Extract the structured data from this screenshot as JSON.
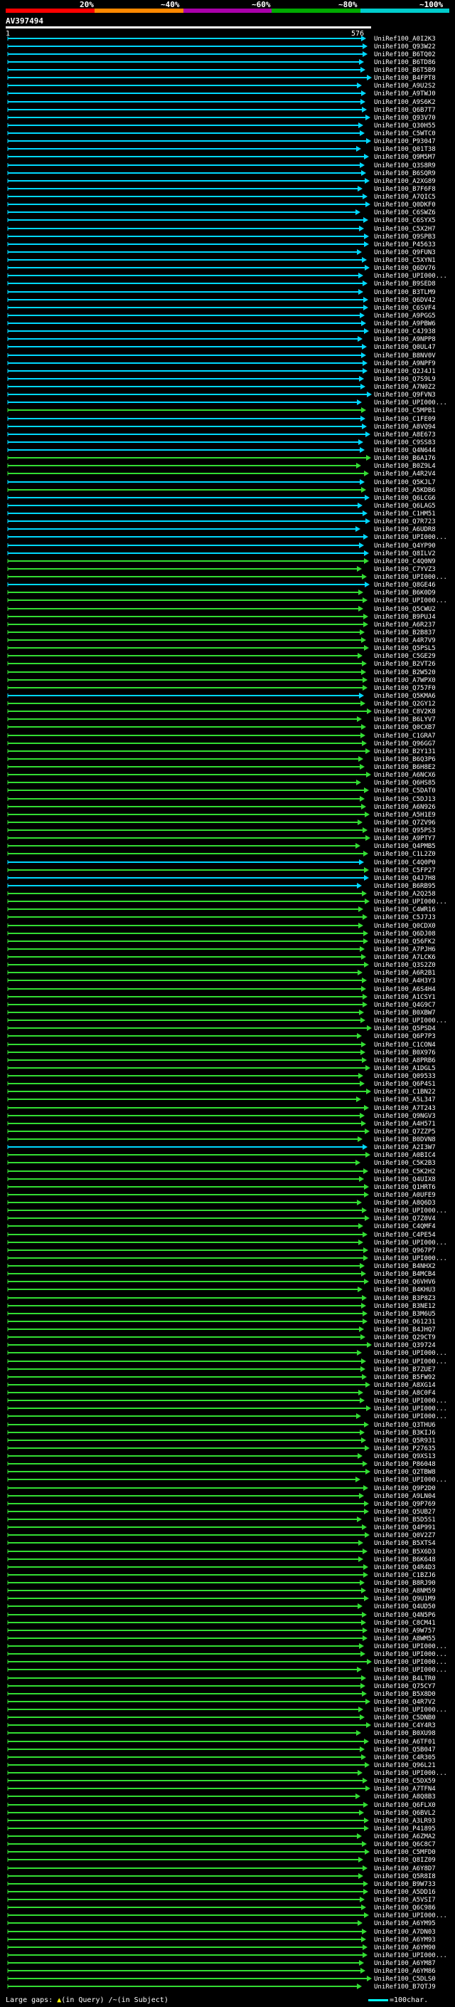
{
  "legend": {
    "labels": [
      "20%",
      "~40%",
      "~60%",
      "~80%",
      "~100%"
    ],
    "colors": [
      "#ff0000",
      "#ff8800",
      "#aa00aa",
      "#00aa00",
      "#00cccc"
    ]
  },
  "query": {
    "title": "AV397494",
    "start": "1",
    "end": "576"
  },
  "hit_colors": {
    "cyan": "#00d8ff",
    "green": "#33dd33",
    "blue": "#4aa0ff",
    "yellow": "#ffff00"
  },
  "hits": [
    {
      "id": "UniRef100_A0I2K3",
      "color": "cyan"
    },
    {
      "id": "UniRef100_Q93W22",
      "color": "cyan"
    },
    {
      "id": "UniRef100_B6TQ02",
      "color": "cyan"
    },
    {
      "id": "UniRef100_B6TD86",
      "color": "cyan"
    },
    {
      "id": "UniRef100_B6T5B9",
      "color": "cyan"
    },
    {
      "id": "UniRef100_B4FPT8",
      "color": "cyan"
    },
    {
      "id": "UniRef100_A9U2S2",
      "color": "cyan"
    },
    {
      "id": "UniRef100_A9TWJ0",
      "color": "cyan"
    },
    {
      "id": "UniRef100_A9S6K2",
      "color": "cyan"
    },
    {
      "id": "UniRef100_Q6B7T7",
      "color": "cyan"
    },
    {
      "id": "UniRef100_Q93V70",
      "color": "cyan"
    },
    {
      "id": "UniRef100_Q30H55",
      "color": "cyan"
    },
    {
      "id": "UniRef100_C5WTC0",
      "color": "cyan"
    },
    {
      "id": "UniRef100_P93047",
      "color": "cyan"
    },
    {
      "id": "UniRef100_Q01T38",
      "color": "cyan"
    },
    {
      "id": "UniRef100_Q9M5M7",
      "color": "cyan"
    },
    {
      "id": "UniRef100_Q3S8R9",
      "color": "cyan"
    },
    {
      "id": "UniRef100_B6SQR9",
      "color": "cyan"
    },
    {
      "id": "UniRef100_A2XG89",
      "color": "cyan"
    },
    {
      "id": "UniRef100_B7F6F8",
      "color": "cyan"
    },
    {
      "id": "UniRef100_A7QIC5",
      "color": "cyan"
    },
    {
      "id": "UniRef100_Q0DKF0",
      "color": "cyan"
    },
    {
      "id": "UniRef100_C6SWZ6",
      "color": "cyan"
    },
    {
      "id": "UniRef100_C6SYX5",
      "color": "cyan"
    },
    {
      "id": "UniRef100_C5X2H7",
      "color": "cyan"
    },
    {
      "id": "UniRef100_Q9SPB3",
      "color": "cyan"
    },
    {
      "id": "UniRef100_P45633",
      "color": "cyan"
    },
    {
      "id": "UniRef100_Q9FUN3",
      "color": "cyan"
    },
    {
      "id": "UniRef100_C5XYN1",
      "color": "cyan"
    },
    {
      "id": "UniRef100_Q6DV76",
      "color": "cyan"
    },
    {
      "id": "UniRef100_UPI000...",
      "color": "cyan"
    },
    {
      "id": "UniRef100_B9SED8",
      "color": "cyan"
    },
    {
      "id": "UniRef100_B3TLM9",
      "color": "cyan"
    },
    {
      "id": "UniRef100_Q6DV42",
      "color": "cyan"
    },
    {
      "id": "UniRef100_C6SVF4",
      "color": "cyan"
    },
    {
      "id": "UniRef100_A9PGG5",
      "color": "cyan"
    },
    {
      "id": "UniRef100_A9PBW6",
      "color": "cyan"
    },
    {
      "id": "UniRef100_C4J938",
      "color": "cyan"
    },
    {
      "id": "UniRef100_A9NPP8",
      "color": "cyan"
    },
    {
      "id": "UniRef100_Q0UL47",
      "color": "cyan"
    },
    {
      "id": "UniRef100_B8NV0V",
      "color": "cyan"
    },
    {
      "id": "UniRef100_A9NPF9",
      "color": "cyan"
    },
    {
      "id": "UniRef100_Q2J4J1",
      "color": "cyan"
    },
    {
      "id": "UniRef100_Q7S9L9",
      "color": "cyan"
    },
    {
      "id": "UniRef100_A7N0Z2",
      "color": "cyan"
    },
    {
      "id": "UniRef100_Q9FVN3",
      "color": "cyan"
    },
    {
      "id": "UniRef100_UPI000...",
      "color": "cyan"
    },
    {
      "id": "UniRef100_C5MPB1",
      "color": "green"
    },
    {
      "id": "UniRef100_C1FE09",
      "color": "cyan"
    },
    {
      "id": "UniRef100_A8VQ94",
      "color": "cyan"
    },
    {
      "id": "UniRef100_A8E673",
      "color": "cyan"
    },
    {
      "id": "UniRef100_C9SS83",
      "color": "cyan"
    },
    {
      "id": "UniRef100_Q4N644",
      "color": "cyan"
    },
    {
      "id": "UniRef100_B6A176",
      "color": "green"
    },
    {
      "id": "UniRef100_B0Z9L4",
      "color": "green"
    },
    {
      "id": "UniRef100_A4R2V4",
      "color": "green"
    },
    {
      "id": "UniRef100_Q5KJL7",
      "color": "cyan"
    },
    {
      "id": "UniRef100_A5KDB6",
      "color": "green"
    },
    {
      "id": "UniRef100_Q6LCG6",
      "color": "cyan"
    },
    {
      "id": "UniRef100_Q6LAG5",
      "color": "cyan"
    },
    {
      "id": "UniRef100_C1HM51",
      "color": "cyan"
    },
    {
      "id": "UniRef100_Q7R723",
      "color": "cyan"
    },
    {
      "id": "UniRef100_A6UDR8",
      "color": "cyan"
    },
    {
      "id": "UniRef100_UPI000...",
      "color": "cyan"
    },
    {
      "id": "UniRef100_Q4YP90",
      "color": "cyan"
    },
    {
      "id": "UniRef100_Q8ILV2",
      "color": "cyan"
    },
    {
      "id": "UniRef100_C4Q0N9",
      "color": "green"
    },
    {
      "id": "UniRef100_C7YVZ3",
      "color": "green"
    },
    {
      "id": "UniRef100_UPI000...",
      "color": "green"
    },
    {
      "id": "UniRef100_Q8GE46",
      "color": "cyan"
    },
    {
      "id": "UniRef100_B6K0D9",
      "color": "green"
    },
    {
      "id": "UniRef100_UPI000...",
      "color": "green"
    },
    {
      "id": "UniRef100_Q5CWU2",
      "color": "green"
    },
    {
      "id": "UniRef100_B9PUJ4",
      "color": "green"
    },
    {
      "id": "UniRef100_A6R237",
      "color": "green"
    },
    {
      "id": "UniRef100_B2B837",
      "color": "green"
    },
    {
      "id": "UniRef100_A4R7V9",
      "color": "green"
    },
    {
      "id": "UniRef100_Q5PSL5",
      "color": "green"
    },
    {
      "id": "UniRef100_C5GE29",
      "color": "green"
    },
    {
      "id": "UniRef100_B2VT26",
      "color": "green"
    },
    {
      "id": "UniRef100_B2W520",
      "color": "green"
    },
    {
      "id": "UniRef100_A7WPX0",
      "color": "green"
    },
    {
      "id": "UniRef100_Q757F0",
      "color": "green"
    },
    {
      "id": "UniRef100_Q5KMA6",
      "color": "cyan"
    },
    {
      "id": "UniRef100_Q2GY12",
      "color": "green"
    },
    {
      "id": "UniRef100_C8V2K8",
      "color": "green"
    },
    {
      "id": "UniRef100_B6LYV7",
      "color": "green"
    },
    {
      "id": "UniRef100_Q0CXB7",
      "color": "green"
    },
    {
      "id": "UniRef100_C1GRA7",
      "color": "green"
    },
    {
      "id": "UniRef100_Q96GG7",
      "color": "green"
    },
    {
      "id": "UniRef100_B2Y131",
      "color": "green"
    },
    {
      "id": "UniRef100_B6Q3P6",
      "color": "green"
    },
    {
      "id": "UniRef100_B6H8E2",
      "color": "green"
    },
    {
      "id": "UniRef100_A6NCX6",
      "color": "green"
    },
    {
      "id": "UniRef100_Q6HS85",
      "color": "green"
    },
    {
      "id": "UniRef100_C5DAT0",
      "color": "green"
    },
    {
      "id": "UniRef100_C5DJ13",
      "color": "green"
    },
    {
      "id": "UniRef100_A6N926",
      "color": "green"
    },
    {
      "id": "UniRef100_A5H1E9",
      "color": "green"
    },
    {
      "id": "UniRef100_Q7ZV96",
      "color": "green"
    },
    {
      "id": "UniRef100_Q95PS3",
      "color": "green"
    },
    {
      "id": "UniRef100_A9PTY7",
      "color": "green"
    },
    {
      "id": "UniRef100_Q4PMB5",
      "color": "green"
    },
    {
      "id": "UniRef100_C1L2Z0",
      "color": "green"
    },
    {
      "id": "UniRef100_C4Q0P0",
      "color": "cyan"
    },
    {
      "id": "UniRef100_C5FP27",
      "color": "green"
    },
    {
      "id": "UniRef100_Q4J7H8",
      "color": "cyan"
    },
    {
      "id": "UniRef100_B6RB95",
      "color": "cyan"
    },
    {
      "id": "UniRef100_A2Q258",
      "color": "green"
    },
    {
      "id": "UniRef100_UPI000...",
      "color": "green"
    },
    {
      "id": "UniRef100_C4WR16",
      "color": "green"
    },
    {
      "id": "UniRef100_C5J7J3",
      "color": "green"
    },
    {
      "id": "UniRef100_Q0CDX0",
      "color": "green"
    },
    {
      "id": "UniRef100_Q6DJ08",
      "color": "green"
    },
    {
      "id": "UniRef100_Q56FK2",
      "color": "green"
    },
    {
      "id": "UniRef100_A7PJH6",
      "color": "green"
    },
    {
      "id": "UniRef100_A7LCK6",
      "color": "green"
    },
    {
      "id": "UniRef100_Q3S2Z0",
      "color": "green"
    },
    {
      "id": "UniRef100_A6R2B1",
      "color": "green"
    },
    {
      "id": "UniRef100_A4H3Y3",
      "color": "green"
    },
    {
      "id": "UniRef100_A6S4H4",
      "color": "green"
    },
    {
      "id": "UniRef100_A1CSY1",
      "color": "green"
    },
    {
      "id": "UniRef100_Q4G9C7",
      "color": "green"
    },
    {
      "id": "UniRef100_B0XBW7",
      "color": "green"
    },
    {
      "id": "UniRef100_UPI000...",
      "color": "green"
    },
    {
      "id": "UniRef100_Q5PSD4",
      "color": "green"
    },
    {
      "id": "UniRef100_Q6P7P3",
      "color": "green"
    },
    {
      "id": "UniRef100_C1CON4",
      "color": "green"
    },
    {
      "id": "UniRef100_B0X976",
      "color": "green"
    },
    {
      "id": "UniRef100_A8PRB6",
      "color": "green"
    },
    {
      "id": "UniRef100_A1DGL5",
      "color": "green"
    },
    {
      "id": "UniRef100_Q09533",
      "color": "green"
    },
    {
      "id": "UniRef100_Q6P4S1",
      "color": "green"
    },
    {
      "id": "UniRef100_C1BN22",
      "color": "green"
    },
    {
      "id": "UniRef100_A5L347",
      "color": "green"
    },
    {
      "id": "UniRef100_A7T243",
      "color": "green"
    },
    {
      "id": "UniRef100_Q9NGV3",
      "color": "green"
    },
    {
      "id": "UniRef100_A4H571",
      "color": "green"
    },
    {
      "id": "UniRef100_Q7ZZP5",
      "color": "green"
    },
    {
      "id": "UniRef100_B0DVN8",
      "color": "green"
    },
    {
      "id": "UniRef100_A2I3W7",
      "color": "cyan"
    },
    {
      "id": "UniRef100_A0BIC4",
      "color": "green"
    },
    {
      "id": "UniRef100_C5K2B3",
      "color": "green"
    },
    {
      "id": "UniRef100_C5K2H2",
      "color": "green"
    },
    {
      "id": "UniRef100_Q4UIX8",
      "color": "green"
    },
    {
      "id": "UniRef100_Q1HRT6",
      "color": "green"
    },
    {
      "id": "UniRef100_A0UFE9",
      "color": "green"
    },
    {
      "id": "UniRef100_A8Q6D3",
      "color": "green"
    },
    {
      "id": "UniRef100_UPI000...",
      "color": "green"
    },
    {
      "id": "UniRef100_Q7Z0V4",
      "color": "green"
    },
    {
      "id": "UniRef100_C4QMF4",
      "color": "green"
    },
    {
      "id": "UniRef100_C4PE54",
      "color": "green"
    },
    {
      "id": "UniRef100_UPI000...",
      "color": "green"
    },
    {
      "id": "UniRef100_Q967P7",
      "color": "green"
    },
    {
      "id": "UniRef100_UPI000...",
      "color": "green"
    },
    {
      "id": "UniRef100_B4NHX2",
      "color": "green"
    },
    {
      "id": "UniRef100_B4MCB4",
      "color": "green"
    },
    {
      "id": "UniRef100_Q6VHV6",
      "color": "green"
    },
    {
      "id": "UniRef100_B4KHU3",
      "color": "green"
    },
    {
      "id": "UniRef100_B3P8Z3",
      "color": "green"
    },
    {
      "id": "UniRef100_B3NE12",
      "color": "green"
    },
    {
      "id": "UniRef100_B3M6U5",
      "color": "green"
    },
    {
      "id": "UniRef100_O61231",
      "color": "green"
    },
    {
      "id": "UniRef100_B4JHQ7",
      "color": "green"
    },
    {
      "id": "UniRef100_Q29CT9",
      "color": "green"
    },
    {
      "id": "UniRef100_Q39724",
      "color": "green"
    },
    {
      "id": "UniRef100_UPI000...",
      "color": "green"
    },
    {
      "id": "UniRef100_UPI000...",
      "color": "green"
    },
    {
      "id": "UniRef100_B7ZUE7",
      "color": "green"
    },
    {
      "id": "UniRef100_B5FW92",
      "color": "green"
    },
    {
      "id": "UniRef100_A8XG14",
      "color": "green"
    },
    {
      "id": "UniRef100_A8C0F4",
      "color": "green"
    },
    {
      "id": "UniRef100_UPI000...",
      "color": "green"
    },
    {
      "id": "UniRef100_UPI000...",
      "color": "green"
    },
    {
      "id": "UniRef100_UPI000...",
      "color": "green"
    },
    {
      "id": "UniRef100_Q3THU6",
      "color": "green"
    },
    {
      "id": "UniRef100_B3KIJ6",
      "color": "green"
    },
    {
      "id": "UniRef100_Q5R931",
      "color": "green"
    },
    {
      "id": "UniRef100_P27635",
      "color": "green"
    },
    {
      "id": "UniRef100_Q9XS13",
      "color": "green"
    },
    {
      "id": "UniRef100_P86048",
      "color": "green"
    },
    {
      "id": "UniRef100_Q2TBW8",
      "color": "green"
    },
    {
      "id": "UniRef100_UPI000...",
      "color": "green"
    },
    {
      "id": "UniRef100_Q9P2D0",
      "color": "green"
    },
    {
      "id": "UniRef100_A9LN04",
      "color": "green"
    },
    {
      "id": "UniRef100_Q9P769",
      "color": "green"
    },
    {
      "id": "UniRef100_Q5UB27",
      "color": "green"
    },
    {
      "id": "UniRef100_B5D5S1",
      "color": "green"
    },
    {
      "id": "UniRef100_Q4P991",
      "color": "green"
    },
    {
      "id": "UniRef100_Q0V2Z7",
      "color": "green"
    },
    {
      "id": "UniRef100_B5XTS4",
      "color": "green"
    },
    {
      "id": "UniRef100_B5X6D3",
      "color": "green"
    },
    {
      "id": "UniRef100_B6K648",
      "color": "green"
    },
    {
      "id": "UniRef100_Q4R4D3",
      "color": "green"
    },
    {
      "id": "UniRef100_C1BZJ6",
      "color": "green"
    },
    {
      "id": "UniRef100_B8RJ90",
      "color": "green"
    },
    {
      "id": "UniRef100_A8NM59",
      "color": "green"
    },
    {
      "id": "UniRef100_Q9U1M9",
      "color": "green"
    },
    {
      "id": "UniRef100_Q4UD50",
      "color": "green"
    },
    {
      "id": "UniRef100_Q4N5P6",
      "color": "green"
    },
    {
      "id": "UniRef100_C8CM41",
      "color": "green"
    },
    {
      "id": "UniRef100_A9W757",
      "color": "green"
    },
    {
      "id": "UniRef100_A8WM55",
      "color": "green"
    },
    {
      "id": "UniRef100_UPI000...",
      "color": "green"
    },
    {
      "id": "UniRef100_UPI000...",
      "color": "green"
    },
    {
      "id": "UniRef100_UPI000...",
      "color": "green"
    },
    {
      "id": "UniRef100_UPI000...",
      "color": "green"
    },
    {
      "id": "UniRef100_B4LTR0",
      "color": "green"
    },
    {
      "id": "UniRef100_Q75CY7",
      "color": "green"
    },
    {
      "id": "UniRef100_B5X8D0",
      "color": "green"
    },
    {
      "id": "UniRef100_Q4R7V2",
      "color": "green"
    },
    {
      "id": "UniRef100_UPI000...",
      "color": "green"
    },
    {
      "id": "UniRef100_C5DNB0",
      "color": "green"
    },
    {
      "id": "UniRef100_C4Y4R3",
      "color": "green"
    },
    {
      "id": "UniRef100_B0XU98",
      "color": "green"
    },
    {
      "id": "UniRef100_A6TF01",
      "color": "green"
    },
    {
      "id": "UniRef100_Q5B047",
      "color": "green"
    },
    {
      "id": "UniRef100_C4R305",
      "color": "green"
    },
    {
      "id": "UniRef100_Q96L21",
      "color": "green"
    },
    {
      "id": "UniRef100_UPI000...",
      "color": "green"
    },
    {
      "id": "UniRef100_C5DX59",
      "color": "green"
    },
    {
      "id": "UniRef100_A7TFN4",
      "color": "green"
    },
    {
      "id": "UniRef100_A8Q8B3",
      "color": "green"
    },
    {
      "id": "UniRef100_Q6FLX0",
      "color": "green"
    },
    {
      "id": "UniRef100_Q6BVL2",
      "color": "green"
    },
    {
      "id": "UniRef100_A3LR93",
      "color": "green"
    },
    {
      "id": "UniRef100_P41895",
      "color": "green"
    },
    {
      "id": "UniRef100_A6ZMA2",
      "color": "green"
    },
    {
      "id": "UniRef100_Q6C8C7",
      "color": "green"
    },
    {
      "id": "UniRef100_C5MFD0",
      "color": "green"
    },
    {
      "id": "UniRef100_Q8IZ09",
      "color": "green"
    },
    {
      "id": "UniRef100_A6Y8D7",
      "color": "green"
    },
    {
      "id": "UniRef100_Q5R8I8",
      "color": "green"
    },
    {
      "id": "UniRef100_B9W733",
      "color": "green"
    },
    {
      "id": "UniRef100_A5DD16",
      "color": "green"
    },
    {
      "id": "UniRef100_A5VSI7",
      "color": "green"
    },
    {
      "id": "UniRef100_Q6C986",
      "color": "green"
    },
    {
      "id": "UniRef100_UPI000...",
      "color": "green"
    },
    {
      "id": "UniRef100_A6YM95",
      "color": "green"
    },
    {
      "id": "UniRef100_A7DN03",
      "color": "green"
    },
    {
      "id": "UniRef100_A6YM93",
      "color": "green"
    },
    {
      "id": "UniRef100_A6YM90",
      "color": "green"
    },
    {
      "id": "UniRef100_UPI000...",
      "color": "green"
    },
    {
      "id": "UniRef100_A6YM87",
      "color": "green"
    },
    {
      "id": "UniRef100_A6YM86",
      "color": "green"
    },
    {
      "id": "UniRef100_C5DLS0",
      "color": "green"
    },
    {
      "id": "UniRef100_B7QTJ9",
      "color": "green"
    }
  ],
  "footer": {
    "large_gaps_label": "Large gaps:",
    "in_query": "(in Query)",
    "in_subject": "(in Subject)",
    "scale_label": "=100char."
  }
}
